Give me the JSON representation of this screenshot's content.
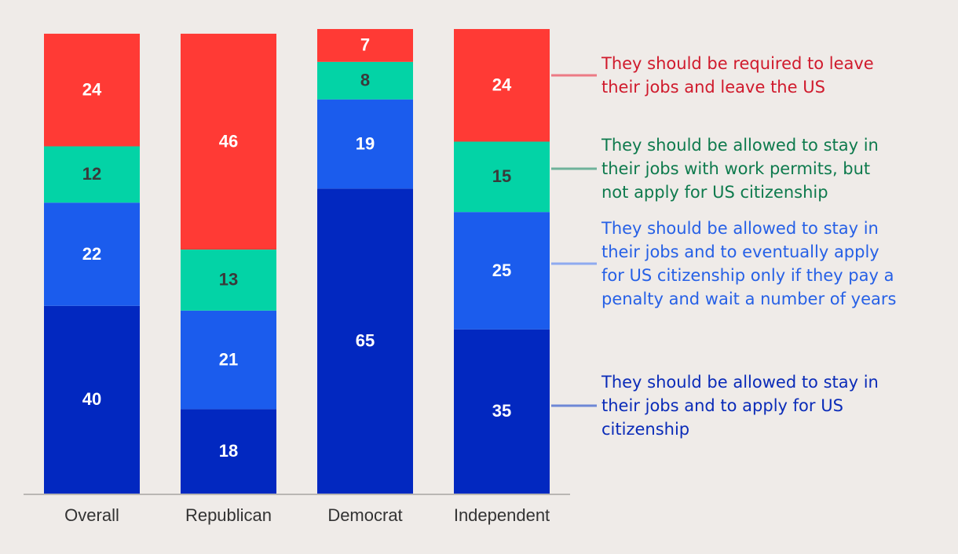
{
  "chart_data": {
    "type": "bar",
    "stacked": true,
    "orientation": "vertical",
    "categories": [
      "Overall",
      "Republican",
      "Democrat",
      "Independent"
    ],
    "series": [
      {
        "name": "They should be allowed to stay in their jobs and to apply for US citizenship",
        "legend_lines": [
          "They should be allowed to stay in",
          "their jobs and to apply for US",
          "citizenship"
        ],
        "color": "#0228c0",
        "legend_color": "#0a2bb8",
        "connector_color": "#6d87d6",
        "values": [
          40,
          18,
          65,
          35
        ]
      },
      {
        "name": "They should be allowed to stay in their jobs and to eventually apply for US citizenship only if they pay a penalty and wait a number of years",
        "legend_lines": [
          "They should be allowed to stay in",
          "their jobs and to eventually apply",
          "for US citizenship only if they pay a",
          "penalty and wait a number of years"
        ],
        "color": "#1b5ced",
        "legend_color": "#2660e6",
        "connector_color": "#8eaaf0",
        "values": [
          22,
          21,
          19,
          25
        ]
      },
      {
        "name": "They should be allowed to stay in their jobs with work permits, but not apply for US citizenship",
        "legend_lines": [
          "They should be allowed to stay in",
          "their jobs with work permits, but",
          "not apply for US citizenship"
        ],
        "color": "#03d3a6",
        "legend_color": "#0e7a4d",
        "connector_color": "#6fb29a",
        "values": [
          12,
          13,
          8,
          15
        ]
      },
      {
        "name": "They should be required to leave their jobs and leave the US",
        "legend_lines": [
          "They should be required to leave",
          "their jobs and leave the US"
        ],
        "color": "#ff3a35",
        "legend_color": "#d01a2c",
        "connector_color": "#ec7a84",
        "values": [
          24,
          46,
          7,
          24
        ]
      }
    ],
    "ylim": [
      0,
      100
    ],
    "title": "",
    "xlabel": "",
    "ylabel": "",
    "grid": false,
    "legend": "right"
  }
}
